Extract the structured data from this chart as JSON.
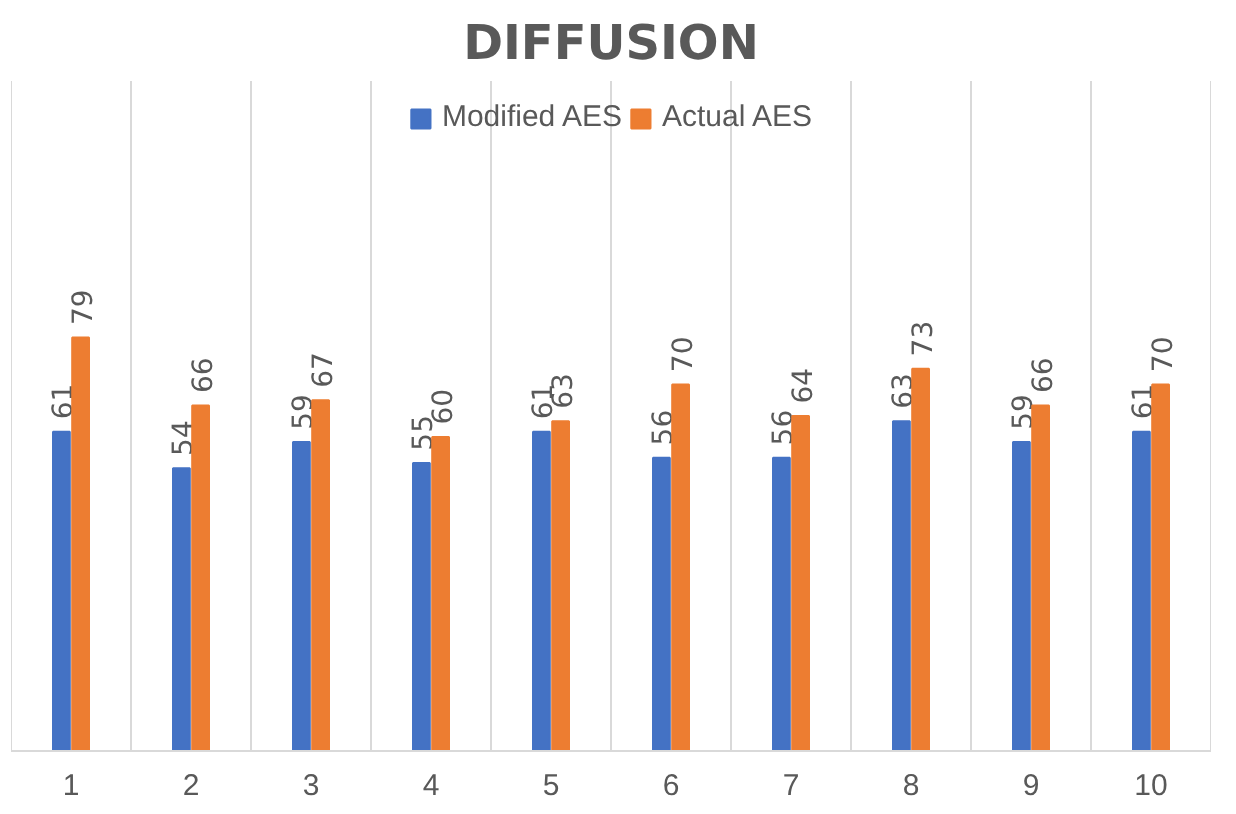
{
  "chart_data": {
    "type": "bar",
    "title": "DIFFUSION",
    "categories": [
      "1",
      "2",
      "3",
      "4",
      "5",
      "6",
      "7",
      "8",
      "9",
      "10"
    ],
    "series": [
      {
        "name": "Modified AES",
        "color": "#4472c4",
        "values": [
          61,
          54,
          59,
          55,
          61,
          56,
          56,
          63,
          59,
          61
        ]
      },
      {
        "name": "Actual AES",
        "color": "#ed7d31",
        "values": [
          79,
          66,
          67,
          60,
          63,
          70,
          64,
          73,
          66,
          70
        ]
      }
    ],
    "data_labels": true,
    "grid": "x",
    "legend": "top"
  }
}
